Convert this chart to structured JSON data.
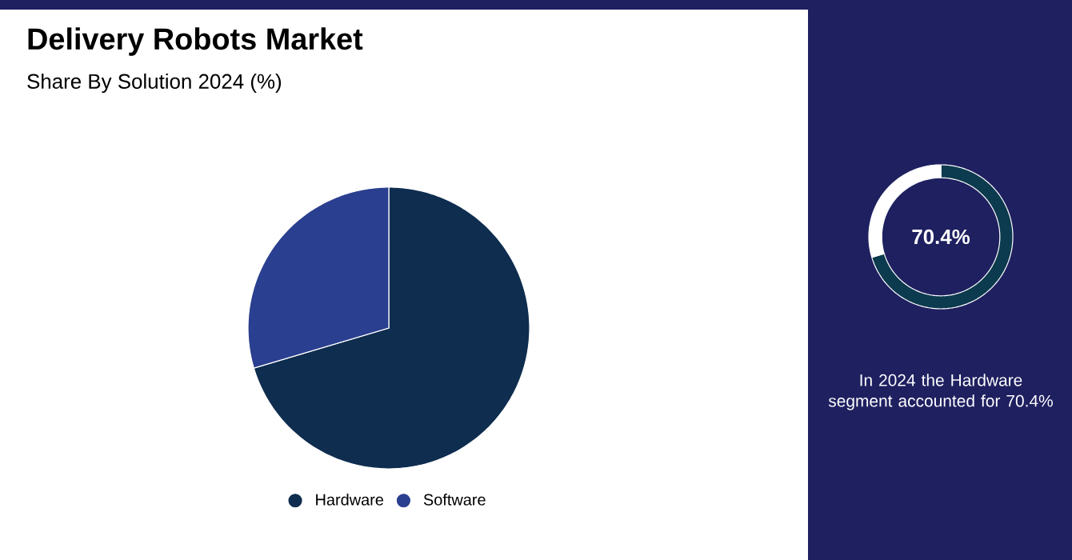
{
  "chart_data": [
    {
      "type": "pie",
      "title": "Delivery Robots Market",
      "subtitle": "Share By Solution 2024 (%)",
      "categories": [
        "Hardware",
        "Software"
      ],
      "values": [
        70.4,
        29.6
      ],
      "colors": [
        "#0e2d4f",
        "#2a3f8f"
      ],
      "legend": "bottom"
    },
    {
      "type": "donut",
      "categories": [
        null,
        null
      ],
      "values": [
        70.4,
        29.6
      ],
      "colors": [
        "#0c3a4e",
        "#ffffff"
      ],
      "value_labels": [
        "70.4%",
        null
      ],
      "annotations": [
        "In 2024 the Hardware segment accounted for 70.4%"
      ]
    }
  ]
}
